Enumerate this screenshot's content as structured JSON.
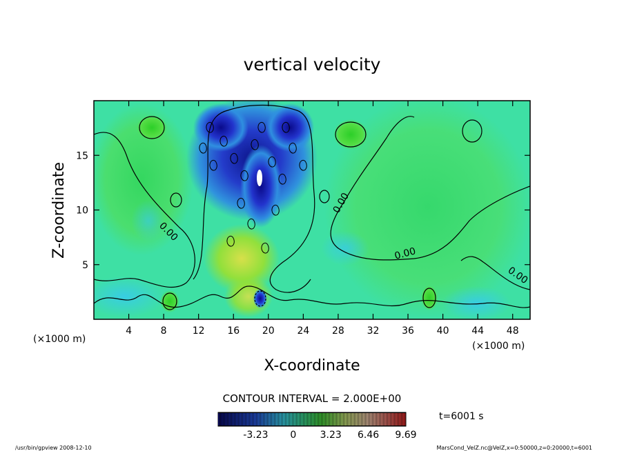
{
  "chart_data": {
    "type": "heatmap",
    "title": "vertical velocity",
    "xlabel": "X-coordinate",
    "ylabel": "Z-coordinate",
    "x_unit": "(×1000 m)",
    "x_unit_right": "(×1000 m)",
    "xlim": [
      0,
      50
    ],
    "ylim": [
      0,
      20
    ],
    "x_ticks": [
      4,
      8,
      12,
      16,
      20,
      24,
      28,
      32,
      36,
      40,
      44,
      48
    ],
    "y_ticks": [
      5,
      10,
      15
    ],
    "contour_label": "0.00",
    "contour_interval": "CONTOUR INTERVAL = 2.000E+00",
    "time_label": "t=6001 s",
    "colorbar_min": -6.46,
    "colorbar_max": 9.69,
    "colorbar_ticks": [
      "-3.23",
      "0",
      "3.23",
      "6.46",
      "9.69"
    ],
    "colorbar_tick_values": [
      -3.23,
      0,
      3.23,
      6.46,
      9.69
    ],
    "footer_left": "/usr/bin/gpview   2008-12-10",
    "footer_right": "MarsCond_VelZ.nc@VelZ,x=0:50000,z=0:20000,t=6001"
  }
}
